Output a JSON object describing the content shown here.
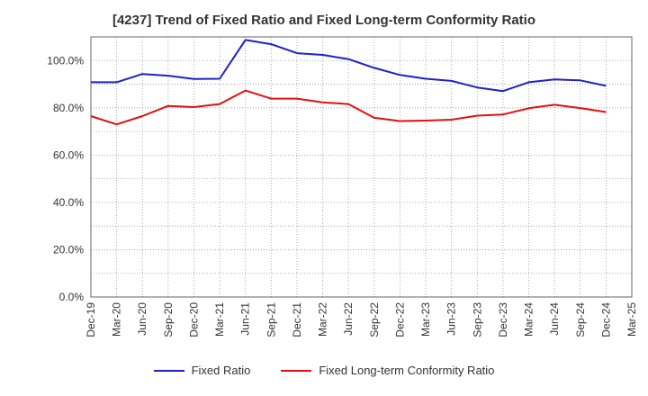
{
  "chart_data": {
    "type": "line",
    "title": "[4237]  Trend of Fixed Ratio and Fixed Long-term Conformity Ratio",
    "xlabel": "",
    "ylabel": "",
    "ylim": [
      0,
      110
    ],
    "y_ticks": [
      "0.0%",
      "20.0%",
      "40.0%",
      "60.0%",
      "80.0%",
      "100.0%"
    ],
    "x_ticks": [
      "Dec-19",
      "Mar-20",
      "Jun-20",
      "Sep-20",
      "Dec-20",
      "Mar-21",
      "Jun-21",
      "Sep-21",
      "Dec-21",
      "Mar-22",
      "Jun-22",
      "Sep-22",
      "Dec-22",
      "Mar-23",
      "Jun-23",
      "Sep-23",
      "Dec-23",
      "Mar-24",
      "Jun-24",
      "Sep-24",
      "Dec-24",
      "Mar-25"
    ],
    "categories": [
      "Dec-19",
      "Mar-20",
      "Jun-20",
      "Sep-20",
      "Dec-20",
      "Mar-21",
      "Jun-21",
      "Sep-21",
      "Dec-21",
      "Mar-22",
      "Jun-22",
      "Sep-22",
      "Dec-22",
      "Mar-23",
      "Jun-23",
      "Sep-23",
      "Dec-23",
      "Mar-24",
      "Jun-24",
      "Sep-24",
      "Dec-24"
    ],
    "grid": true,
    "legend_position": "bottom",
    "series": [
      {
        "name": "Fixed Ratio",
        "color": "#1f1fcc",
        "values": [
          90.8,
          90.8,
          94.3,
          93.6,
          92.2,
          92.3,
          108.7,
          106.9,
          103.1,
          102.4,
          100.6,
          96.9,
          93.9,
          92.3,
          91.4,
          88.6,
          87.1,
          90.8,
          92.0,
          91.6,
          89.3
        ]
      },
      {
        "name": "Fixed Long-term Conformity Ratio",
        "color": "#e01010",
        "values": [
          76.5,
          73.0,
          76.5,
          80.8,
          80.3,
          81.6,
          87.3,
          83.9,
          83.9,
          82.3,
          81.6,
          75.8,
          74.4,
          74.6,
          75.0,
          76.7,
          77.2,
          79.8,
          81.3,
          79.9,
          78.2
        ]
      }
    ]
  }
}
